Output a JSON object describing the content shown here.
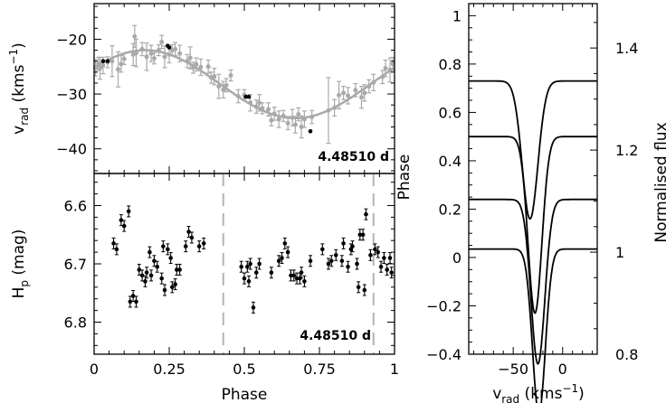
{
  "colors": {
    "fit": "#a9a9a9",
    "grey_points": "#a9a9a9",
    "black_points": "#000000",
    "dash": "#b4b4b4",
    "profile": "#000000"
  },
  "chart_data": [
    {
      "id": "rv",
      "type": "scatter",
      "ylabel": "v",
      "ylabel_sub": "rad",
      "ylabel_unit": " (kms",
      "ylabel_sup": "−1",
      "ylabel_close": ")",
      "annotation": "4.48510 d",
      "xlim": [
        0,
        1
      ],
      "ylim": [
        -44.5,
        -13.5
      ],
      "y_inverted": true,
      "yticks": [
        {
          "v": -20,
          "l": "−20"
        },
        {
          "v": -30,
          "l": "−30"
        },
        {
          "v": -40,
          "l": "−40"
        }
      ],
      "fit": {
        "type": "sine",
        "gamma": -28.2,
        "amplitude": 6.2,
        "phase_of_max": 0.17
      },
      "series": [
        {
          "kind": "grey_with_errors",
          "points": [
            [
              0.005,
              -25.2,
              1.5
            ],
            [
              0.015,
              -24.5,
              1.2
            ],
            [
              0.02,
              -25.3,
              2.0
            ],
            [
              0.03,
              -24.8,
              1.5
            ],
            [
              0.045,
              -24.2,
              1.0
            ],
            [
              0.06,
              -24.0,
              2.8
            ],
            [
              0.08,
              -25.5,
              3.2
            ],
            [
              0.09,
              -24.5,
              1.5
            ],
            [
              0.1,
              -23.6,
              1.0
            ],
            [
              0.13,
              -22.8,
              2.0
            ],
            [
              0.135,
              -19.5,
              2.0
            ],
            [
              0.14,
              -22.5,
              2.5
            ],
            [
              0.16,
              -21.8,
              1.2
            ],
            [
              0.175,
              -23.2,
              2.5
            ],
            [
              0.19,
              -22.6,
              1.5
            ],
            [
              0.2,
              -23.5,
              1.0
            ],
            [
              0.215,
              -22.0,
              1.0
            ],
            [
              0.225,
              -20.5,
              1.2
            ],
            [
              0.235,
              -23.2,
              2.0
            ],
            [
              0.25,
              -22.8,
              1.5
            ],
            [
              0.26,
              -22.0,
              1.0
            ],
            [
              0.27,
              -21.8,
              1.2
            ],
            [
              0.285,
              -22.6,
              1.5
            ],
            [
              0.31,
              -24.0,
              1.2
            ],
            [
              0.32,
              -23.4,
              2.0
            ],
            [
              0.33,
              -25.2,
              1.0
            ],
            [
              0.34,
              -24.6,
              1.2
            ],
            [
              0.355,
              -25.1,
              1.5
            ],
            [
              0.38,
              -25.0,
              1.2
            ],
            [
              0.39,
              -27.0,
              1.0
            ],
            [
              0.4,
              -26.8,
              1.5
            ],
            [
              0.415,
              -28.6,
              2.2
            ],
            [
              0.43,
              -29.2,
              1.5
            ],
            [
              0.44,
              -28.4,
              1.2
            ],
            [
              0.455,
              -26.6,
              1.0
            ],
            [
              0.48,
              -30.4,
              1.2
            ],
            [
              0.5,
              -30.2,
              1.0
            ],
            [
              0.52,
              -31.6,
              1.5
            ],
            [
              0.54,
              -32.3,
              1.2
            ],
            [
              0.55,
              -31.6,
              1.5
            ],
            [
              0.56,
              -32.6,
              1.0
            ],
            [
              0.58,
              -32.8,
              1.2
            ],
            [
              0.59,
              -34.8,
              1.0
            ],
            [
              0.6,
              -33.6,
              1.2
            ],
            [
              0.615,
              -34.6,
              1.5
            ],
            [
              0.63,
              -34.0,
              1.0
            ],
            [
              0.645,
              -35.3,
              1.2
            ],
            [
              0.66,
              -34.3,
              1.5
            ],
            [
              0.67,
              -35.6,
              1.5
            ],
            [
              0.68,
              -33.7,
              1.2
            ],
            [
              0.69,
              -36.0,
              2.0
            ],
            [
              0.7,
              -34.6,
              1.5
            ],
            [
              0.725,
              -34.2,
              1.2
            ],
            [
              0.78,
              -33.0,
              6.0
            ],
            [
              0.8,
              -32.5,
              1.5
            ],
            [
              0.815,
              -30.2,
              2.5
            ],
            [
              0.83,
              -29.8,
              1.2
            ],
            [
              0.845,
              -30.3,
              1.5
            ],
            [
              0.87,
              -29.3,
              1.2
            ],
            [
              0.89,
              -30.6,
              2.0
            ],
            [
              0.9,
              -29.8,
              1.5
            ],
            [
              0.915,
              -28.6,
              1.2
            ],
            [
              0.93,
              -27.9,
              1.5
            ],
            [
              0.96,
              -26.9,
              1.2
            ],
            [
              0.97,
              -25.3,
              1.5
            ],
            [
              0.985,
              -25.6,
              2.2
            ],
            [
              0.995,
              -24.5,
              1.2
            ]
          ]
        },
        {
          "kind": "black",
          "points": [
            [
              0.03,
              -24.0
            ],
            [
              0.045,
              -24.0
            ],
            [
              0.245,
              -21.2
            ],
            [
              0.25,
              -21.5
            ],
            [
              0.505,
              -30.5
            ],
            [
              0.515,
              -30.5
            ],
            [
              0.72,
              -36.8
            ]
          ]
        }
      ]
    },
    {
      "id": "hp",
      "type": "scatter",
      "xlabel": "Phase",
      "ylabel": "H",
      "ylabel_sub": "p",
      "ylabel_unit": " (mag)",
      "annotation": "4.48510 d",
      "xlim": [
        0,
        1
      ],
      "ylim": [
        6.855,
        6.545
      ],
      "y_inverted": true,
      "xticks": [
        {
          "v": 0,
          "l": "0"
        },
        {
          "v": 0.25,
          "l": "0.25"
        },
        {
          "v": 0.5,
          "l": "0.5"
        },
        {
          "v": 0.75,
          "l": "0.75"
        },
        {
          "v": 1,
          "l": "1"
        }
      ],
      "yticks": [
        {
          "v": 6.6,
          "l": "6.6"
        },
        {
          "v": 6.7,
          "l": "6.7"
        },
        {
          "v": 6.8,
          "l": "6.8"
        }
      ],
      "vlines": [
        0.43,
        0.93
      ],
      "points": [
        [
          0.065,
          6.665
        ],
        [
          0.075,
          6.675
        ],
        [
          0.09,
          6.625
        ],
        [
          0.1,
          6.635
        ],
        [
          0.115,
          6.61
        ],
        [
          0.12,
          6.765
        ],
        [
          0.13,
          6.755
        ],
        [
          0.14,
          6.765
        ],
        [
          0.15,
          6.71
        ],
        [
          0.16,
          6.72
        ],
        [
          0.17,
          6.73
        ],
        [
          0.175,
          6.715
        ],
        [
          0.185,
          6.68
        ],
        [
          0.19,
          6.72
        ],
        [
          0.2,
          6.695
        ],
        [
          0.21,
          6.705
        ],
        [
          0.225,
          6.725
        ],
        [
          0.23,
          6.67
        ],
        [
          0.235,
          6.745
        ],
        [
          0.245,
          6.675
        ],
        [
          0.255,
          6.69
        ],
        [
          0.26,
          6.74
        ],
        [
          0.27,
          6.735
        ],
        [
          0.275,
          6.71
        ],
        [
          0.285,
          6.71
        ],
        [
          0.305,
          6.67
        ],
        [
          0.315,
          6.645
        ],
        [
          0.325,
          6.655
        ],
        [
          0.35,
          6.67
        ],
        [
          0.365,
          6.665
        ],
        [
          0.49,
          6.705
        ],
        [
          0.5,
          6.725
        ],
        [
          0.51,
          6.705
        ],
        [
          0.515,
          6.73
        ],
        [
          0.52,
          6.7
        ],
        [
          0.53,
          6.775
        ],
        [
          0.54,
          6.715
        ],
        [
          0.55,
          6.7
        ],
        [
          0.59,
          6.715
        ],
        [
          0.615,
          6.695
        ],
        [
          0.625,
          6.69
        ],
        [
          0.635,
          6.665
        ],
        [
          0.645,
          6.68
        ],
        [
          0.655,
          6.72
        ],
        [
          0.665,
          6.72
        ],
        [
          0.675,
          6.725
        ],
        [
          0.685,
          6.725
        ],
        [
          0.69,
          6.715
        ],
        [
          0.7,
          6.73
        ],
        [
          0.72,
          6.695
        ],
        [
          0.76,
          6.675
        ],
        [
          0.78,
          6.7
        ],
        [
          0.79,
          6.695
        ],
        [
          0.805,
          6.685
        ],
        [
          0.825,
          6.695
        ],
        [
          0.83,
          6.665
        ],
        [
          0.845,
          6.705
        ],
        [
          0.855,
          6.675
        ],
        [
          0.86,
          6.67
        ],
        [
          0.875,
          6.7
        ],
        [
          0.88,
          6.74
        ],
        [
          0.885,
          6.65
        ],
        [
          0.895,
          6.65
        ],
        [
          0.9,
          6.745
        ],
        [
          0.905,
          6.615
        ],
        [
          0.92,
          6.685
        ],
        [
          0.935,
          6.675
        ],
        [
          0.945,
          6.68
        ],
        [
          0.955,
          6.705
        ],
        [
          0.965,
          6.69
        ],
        [
          0.975,
          6.71
        ],
        [
          0.985,
          6.69
        ],
        [
          0.99,
          6.715
        ]
      ]
    },
    {
      "id": "profiles",
      "type": "line",
      "xlabel": "v",
      "xlabel_sub": "rad",
      "xlabel_unit": " (kms",
      "xlabel_sup": "−1",
      "xlabel_close": ")",
      "ylabel_left": "Phase",
      "ylabel_right": "Normalised flux",
      "xlim": [
        -95,
        35
      ],
      "ylim_left": [
        -0.4,
        1.05
      ],
      "ylim_right": [
        0.8,
        1.487
      ],
      "xticks": [
        {
          "v": -50,
          "l": "−50"
        },
        {
          "v": 0,
          "l": "0"
        }
      ],
      "yticks_left": [
        {
          "v": 1,
          "l": "1"
        },
        {
          "v": 0.8,
          "l": "0.8"
        },
        {
          "v": 0.6,
          "l": "0.6"
        },
        {
          "v": 0.4,
          "l": "0.4"
        },
        {
          "v": 0.2,
          "l": "0.2"
        },
        {
          "v": 0,
          "l": "0"
        },
        {
          "v": -0.2,
          "l": "−0.2"
        },
        {
          "v": -0.4,
          "l": "−0.4"
        }
      ],
      "yticks_right": [
        {
          "v": 1.4,
          "l": "1.4"
        },
        {
          "v": 1.2,
          "l": "1.2"
        },
        {
          "v": 1,
          "l": "1"
        },
        {
          "v": 0.8,
          "l": "0.8"
        }
      ],
      "series": [
        {
          "phase": 0.73,
          "center": -33,
          "depth": 0.57,
          "sigma": 8
        },
        {
          "phase": 0.5,
          "center": -28,
          "depth": 0.73,
          "sigma": 7
        },
        {
          "phase": 0.24,
          "center": -25,
          "depth": 0.68,
          "sigma": 7
        },
        {
          "phase": 0.035,
          "center": -24,
          "depth": 0.68,
          "sigma": 6.5
        }
      ]
    }
  ]
}
